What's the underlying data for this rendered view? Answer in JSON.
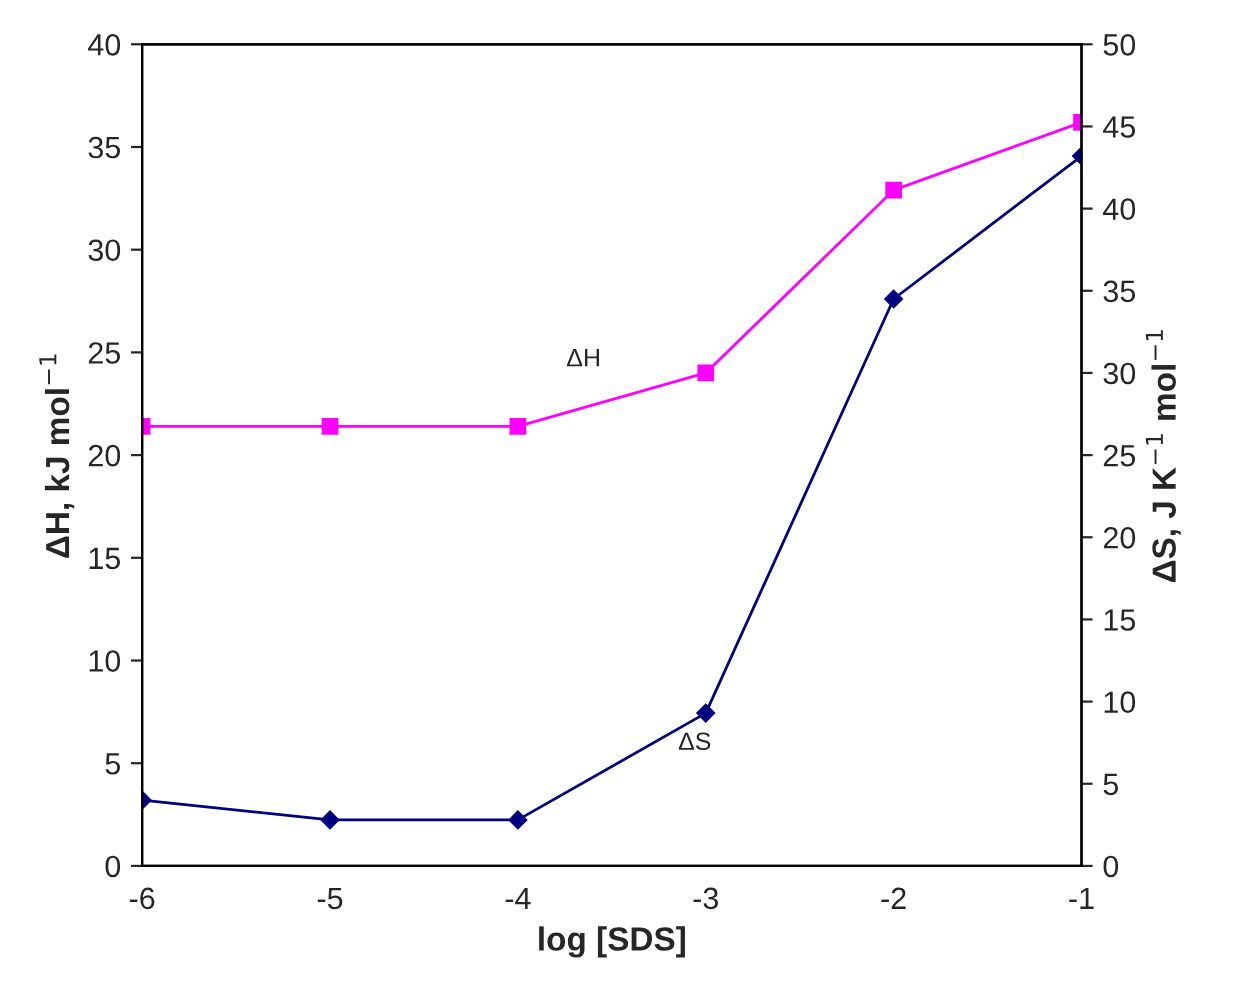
{
  "chart_data": {
    "type": "line",
    "xlabel": "log [SDS]",
    "ylabel": "ΔH, kJ mol$^{−1}$",
    "y2label": "ΔS, J K$^{−1}$ mol$^{−1}$",
    "x": [
      -6,
      -5,
      -4,
      -3,
      -2,
      -1
    ],
    "xlim": [
      -6,
      -1
    ],
    "xticks": [
      -6,
      -5,
      -4,
      -3,
      -2,
      -1
    ],
    "ylim": [
      0,
      40
    ],
    "yticks": [
      0,
      5,
      10,
      15,
      20,
      25,
      30,
      35,
      40
    ],
    "y2lim": [
      0,
      50
    ],
    "y2ticks": [
      0,
      5,
      10,
      15,
      20,
      25,
      30,
      35,
      40,
      45,
      50
    ],
    "grid": false,
    "legend": false,
    "series": [
      {
        "name": "ΔH",
        "color": "#ff00ff",
        "marker": "square",
        "values": [
          21.4,
          21.4,
          21.4,
          24.0,
          32.9,
          36.2
        ]
      },
      {
        "name": "ΔS",
        "color": "#000080",
        "marker": "diamond",
        "axis": "y2",
        "values": [
          4.0,
          2.8,
          2.8,
          9.3,
          34.5,
          43.2
        ]
      }
    ]
  }
}
